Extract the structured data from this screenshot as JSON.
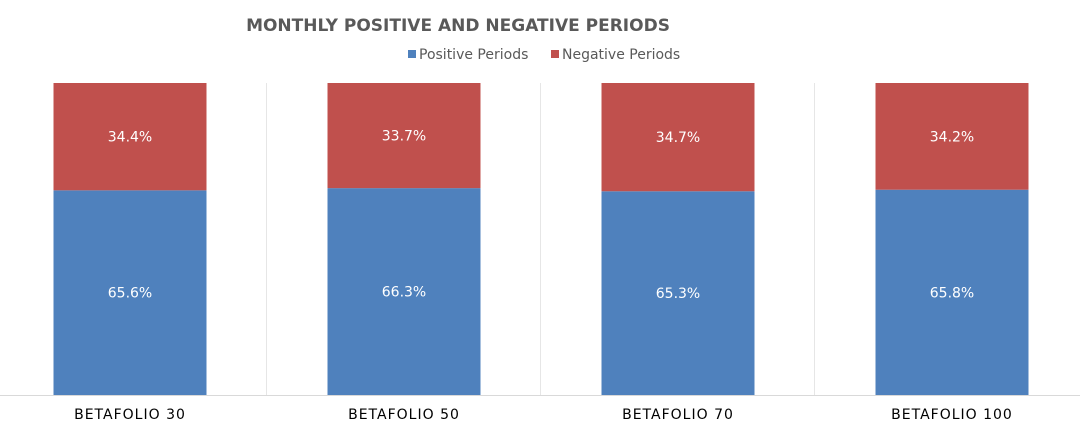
{
  "chart_data": {
    "type": "bar",
    "stacked": true,
    "title": "MONTHLY POSITIVE AND NEGATIVE PERIODS",
    "categories": [
      "BETAFOLIO 30",
      "BETAFOLIO 50",
      "BETAFOLIO 70",
      "BETAFOLIO 100"
    ],
    "series": [
      {
        "name": "Positive Periods",
        "color": "#4F81BD",
        "values": [
          65.6,
          66.3,
          65.3,
          65.8
        ],
        "labels": [
          "65.6%",
          "66.3%",
          "65.3%",
          "65.8%"
        ]
      },
      {
        "name": "Negative Periods",
        "color": "#C0504D",
        "values": [
          34.4,
          33.7,
          34.7,
          34.2
        ],
        "labels": [
          "34.4%",
          "33.7%",
          "34.7%",
          "34.2%"
        ]
      }
    ],
    "ylim": [
      0,
      100
    ],
    "xlabel": "",
    "ylabel": "",
    "legend_position": "top",
    "grid": false
  }
}
